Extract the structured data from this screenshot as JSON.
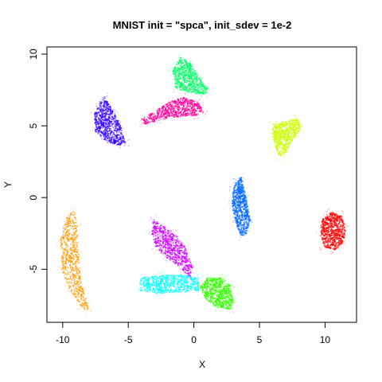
{
  "chart_data": {
    "type": "scatter",
    "title": "MNIST init = \"spca\", init_sdev = 1e-2",
    "xlabel": "X",
    "ylabel": "Y",
    "xlim": [
      -11.2,
      12.4
    ],
    "ylim": [
      -8.7,
      10.5
    ],
    "xticks": [
      -10,
      -5,
      0,
      5,
      10
    ],
    "yticks": [
      -5,
      0,
      5,
      10
    ],
    "grid": false,
    "legend": "none",
    "series": [
      {
        "color": "#ff9900",
        "cloud": {
          "path": [
            [
              -9.1,
              -0.8
            ],
            [
              -8.9,
              -2
            ],
            [
              -8.8,
              -4
            ],
            [
              -8.6,
              -6
            ],
            [
              -8.1,
              -7.4
            ],
            [
              -8,
              -8
            ],
            [
              -8.6,
              -7.6
            ],
            [
              -9.5,
              -6.4
            ],
            [
              -10.1,
              -5
            ],
            [
              -10.2,
              -3
            ],
            [
              -9.8,
              -1.5
            ]
          ]
        }
      },
      {
        "color": "#3300ff",
        "cloud": {
          "path": [
            [
              -6.8,
              7
            ],
            [
              -6.1,
              6
            ],
            [
              -5.6,
              5
            ],
            [
              -5.2,
              3.8
            ],
            [
              -5.8,
              3.6
            ],
            [
              -6.8,
              4
            ],
            [
              -7.5,
              4.6
            ],
            [
              -7.6,
              5.8
            ],
            [
              -7.2,
              6.6
            ]
          ]
        }
      },
      {
        "color": "#00ff66",
        "cloud": {
          "path": [
            [
              -1,
              9.8
            ],
            [
              -0.2,
              9.3
            ],
            [
              0.4,
              8.4
            ],
            [
              1.2,
              7.5
            ],
            [
              0.8,
              7.2
            ],
            [
              -0.4,
              7.3
            ],
            [
              -1.4,
              7.6
            ],
            [
              -1.6,
              8.8
            ],
            [
              -1.3,
              9.5
            ]
          ]
        }
      },
      {
        "color": "#ff0099",
        "cloud": {
          "path": [
            [
              -4,
              5.5
            ],
            [
              -3,
              6
            ],
            [
              -1.8,
              6.7
            ],
            [
              -0.8,
              7
            ],
            [
              0.4,
              6.6
            ],
            [
              0.7,
              5.9
            ],
            [
              0.2,
              5.7
            ],
            [
              -1.6,
              5.6
            ],
            [
              -2.8,
              5.3
            ],
            [
              -3.8,
              5.1
            ]
          ]
        }
      },
      {
        "color": "#ccff00",
        "cloud": {
          "path": [
            [
              6,
              5.1
            ],
            [
              7.2,
              5.4
            ],
            [
              7.9,
              5.5
            ],
            [
              8.2,
              4.8
            ],
            [
              7.5,
              4
            ],
            [
              7,
              3.1
            ],
            [
              6.6,
              2.7
            ],
            [
              6.2,
              3.5
            ],
            [
              6,
              4.3
            ]
          ]
        }
      },
      {
        "color": "#0066ff",
        "cloud": {
          "path": [
            [
              3.6,
              1.4
            ],
            [
              4,
              0
            ],
            [
              4.3,
              -1.6
            ],
            [
              4,
              -2.5
            ],
            [
              3.6,
              -2.7
            ],
            [
              3.2,
              -1.8
            ],
            [
              2.9,
              -0.5
            ],
            [
              3,
              0.6
            ],
            [
              3.3,
              1.2
            ]
          ]
        }
      },
      {
        "color": "#ff0000",
        "cloud": {
          "path": [
            [
              10.4,
              -1
            ],
            [
              11.2,
              -1.2
            ],
            [
              11.6,
              -2.2
            ],
            [
              11.3,
              -3.3
            ],
            [
              10.7,
              -3.7
            ],
            [
              9.9,
              -3.4
            ],
            [
              9.6,
              -2.4
            ],
            [
              9.8,
              -1.5
            ]
          ]
        }
      },
      {
        "color": "#cc00ff",
        "cloud": {
          "path": [
            [
              -3.1,
              -1.5
            ],
            [
              -1.6,
              -2.4
            ],
            [
              -0.6,
              -3.5
            ],
            [
              -0.1,
              -4.9
            ],
            [
              -0.3,
              -5.6
            ],
            [
              -1,
              -4.9
            ],
            [
              -2.1,
              -4.2
            ],
            [
              -2.9,
              -3.5
            ],
            [
              -3.2,
              -2.5
            ]
          ]
        }
      },
      {
        "color": "#00ffff",
        "cloud": {
          "path": [
            [
              -4.1,
              -5.6
            ],
            [
              -2.5,
              -5.4
            ],
            [
              -0.8,
              -5.4
            ],
            [
              0.4,
              -5.6
            ],
            [
              0.4,
              -6.5
            ],
            [
              -1,
              -6.6
            ],
            [
              -2.8,
              -6.7
            ],
            [
              -4.1,
              -6.5
            ]
          ]
        }
      },
      {
        "color": "#33ff00",
        "cloud": {
          "path": [
            [
              1,
              -5.6
            ],
            [
              2.1,
              -5.6
            ],
            [
              2.8,
              -6.1
            ],
            [
              3,
              -7.2
            ],
            [
              2.8,
              -7.8
            ],
            [
              1.8,
              -7.7
            ],
            [
              0.8,
              -7
            ],
            [
              0.5,
              -6.2
            ]
          ]
        }
      }
    ]
  }
}
